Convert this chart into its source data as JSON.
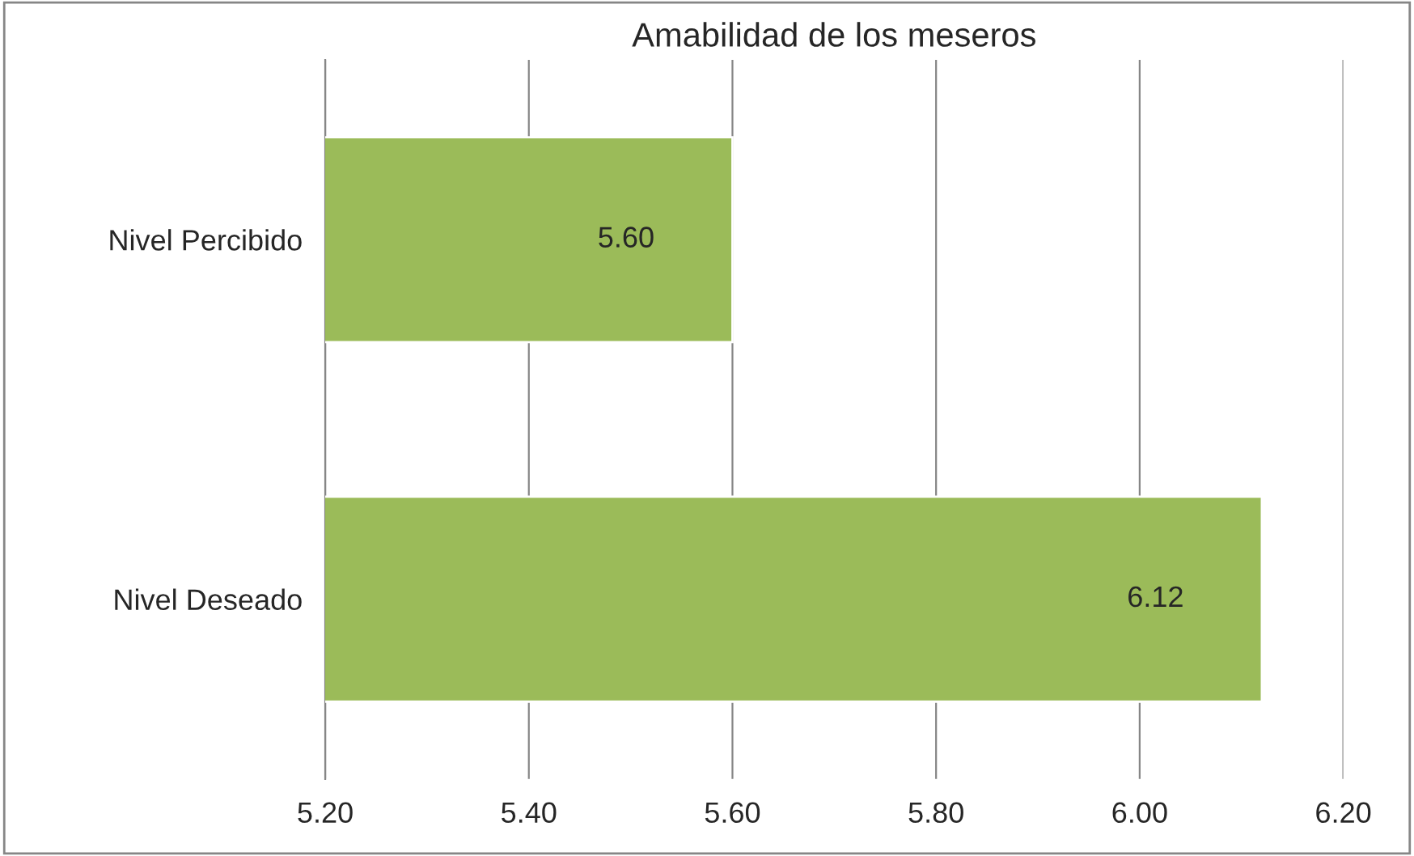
{
  "chart_data": {
    "type": "bar",
    "orientation": "horizontal",
    "title": "Amabilidad de los meseros",
    "categories": [
      "Nivel Percibido",
      "Nivel Deseado"
    ],
    "values": [
      5.6,
      6.12
    ],
    "color": "#9bbb59",
    "value_labels": [
      "5.60",
      "6.12"
    ],
    "xlim": [
      5.2,
      6.2
    ],
    "xticks": [
      {
        "value": 5.2,
        "label": "5.20"
      },
      {
        "value": 5.4,
        "label": "5.40"
      },
      {
        "value": 5.6,
        "label": "5.60"
      },
      {
        "value": 5.8,
        "label": "5.80"
      },
      {
        "value": 6.0,
        "label": "6.00"
      },
      {
        "value": 6.2,
        "label": "6.20"
      }
    ],
    "grid": "x",
    "legend": false
  }
}
